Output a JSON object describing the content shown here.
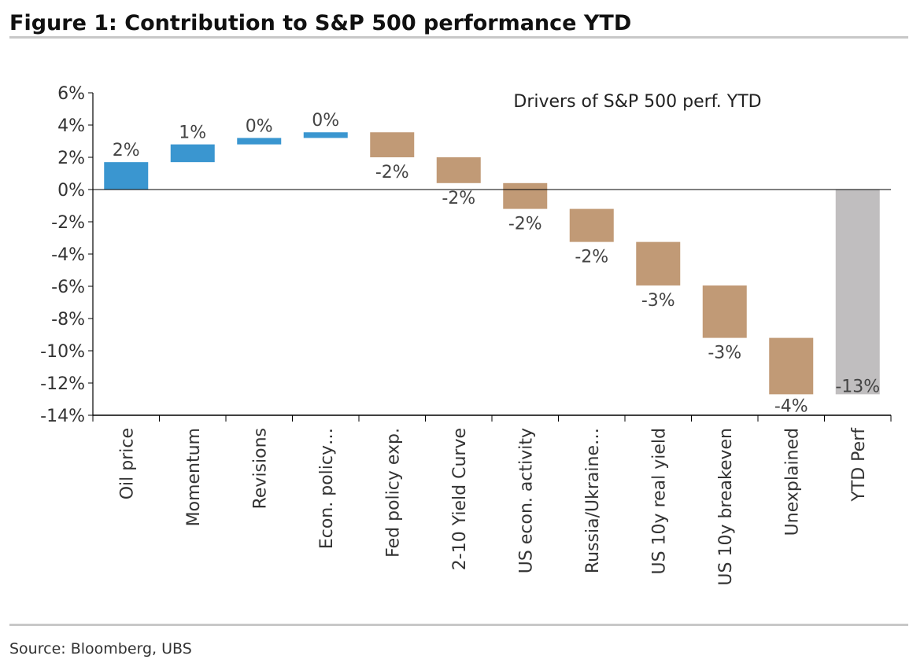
{
  "header": {
    "title": "Figure 1: Contribution to S&P 500 performance YTD",
    "source": "Source: Bloomberg, UBS"
  },
  "chart_data": {
    "type": "waterfall",
    "title": "Drivers of S&P 500 perf. YTD",
    "xlabel": "",
    "ylabel": "",
    "ylim": [
      -14,
      6
    ],
    "yticks": [
      6,
      4,
      2,
      0,
      -2,
      -4,
      -6,
      -8,
      -10,
      -12,
      -14
    ],
    "ytick_labels": [
      "6%",
      "4%",
      "2%",
      "0%",
      "-2%",
      "-4%",
      "-6%",
      "-8%",
      "-10%",
      "-12%",
      "-14%"
    ],
    "categories": [
      "Oil price",
      "Momentum",
      "Revisions",
      "Econ. policy…",
      "Fed policy exp.",
      "2-10 Yield Curve",
      "US econ. activity",
      "Russia/Ukraine…",
      "US 10y real yield",
      "US 10y breakeven",
      "Unexplained",
      "YTD Perf"
    ],
    "bars": [
      {
        "start": 0,
        "end": 1.7,
        "label": "2%",
        "kind": "positive"
      },
      {
        "start": 1.7,
        "end": 2.8,
        "label": "1%",
        "kind": "positive"
      },
      {
        "start": 2.8,
        "end": 3.2,
        "label": "0%",
        "kind": "positive"
      },
      {
        "start": 3.2,
        "end": 3.55,
        "label": "0%",
        "kind": "positive"
      },
      {
        "start": 3.55,
        "end": 2.0,
        "label": "-2%",
        "kind": "negative"
      },
      {
        "start": 2.0,
        "end": 0.4,
        "label": "-2%",
        "kind": "negative"
      },
      {
        "start": 0.4,
        "end": -1.2,
        "label": "-2%",
        "kind": "negative"
      },
      {
        "start": -1.2,
        "end": -3.25,
        "label": "-2%",
        "kind": "negative"
      },
      {
        "start": -3.25,
        "end": -5.95,
        "label": "-3%",
        "kind": "negative"
      },
      {
        "start": -5.95,
        "end": -9.2,
        "label": "-3%",
        "kind": "negative"
      },
      {
        "start": -9.2,
        "end": -12.7,
        "label": "-4%",
        "kind": "negative"
      },
      {
        "start": 0,
        "end": -12.7,
        "label": "-13%",
        "kind": "total"
      }
    ],
    "colors": {
      "positive": "#3a96d0",
      "negative": "#c19a76",
      "total": "#c0bebf"
    }
  }
}
